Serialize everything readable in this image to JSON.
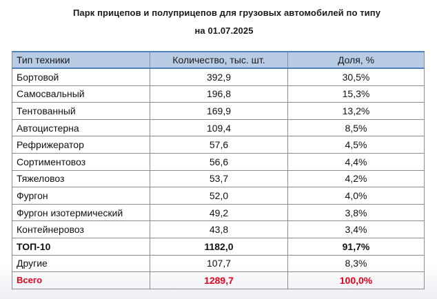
{
  "title_line1": "Парк прицепов и полуприцепов для грузовых автомобилей по типу",
  "title_line2": "на 01.07.2025",
  "headers": [
    "Тип техники",
    "Количество, тыс. шт.",
    "Доля, %"
  ],
  "rows": [
    {
      "name": "Бортовой",
      "qty": "392,9",
      "share": "30,5%"
    },
    {
      "name": "Самосвальный",
      "qty": "196,8",
      "share": "15,3%"
    },
    {
      "name": "Тентованный",
      "qty": "169,9",
      "share": "13,2%"
    },
    {
      "name": "Автоцистерна",
      "qty": "109,4",
      "share": "8,5%"
    },
    {
      "name": "Рефрижератор",
      "qty": "57,6",
      "share": "4,5%"
    },
    {
      "name": "Сортиментовоз",
      "qty": "56,6",
      "share": "4,4%"
    },
    {
      "name": "Тяжеловоз",
      "qty": "53,7",
      "share": "4,2%"
    },
    {
      "name": "Фургон",
      "qty": "52,0",
      "share": "4,0%"
    },
    {
      "name": "Фургон изотермический",
      "qty": "49,2",
      "share": "3,8%"
    },
    {
      "name": "Контейнеровоз",
      "qty": "43,8",
      "share": "3,4%"
    },
    {
      "name": "ТОП-10",
      "qty": "1182,0",
      "share": "91,7%",
      "style": "bold"
    },
    {
      "name": "Другие",
      "qty": "107,7",
      "share": "8,3%"
    },
    {
      "name": "Всего",
      "qty": "1289,7",
      "share": "100,0%",
      "style": "total"
    }
  ],
  "colors": {
    "header_bg": "#b8cce4",
    "header_rule": "#4f81bd",
    "total_text": "#e8001c"
  },
  "chart_data": {
    "type": "table",
    "title": "Парк прицепов и полуприцепов для грузовых автомобилей по типу на 01.07.2025",
    "columns": [
      "Тип техники",
      "Количество, тыс. шт.",
      "Доля, %"
    ],
    "rows": [
      [
        "Бортовой",
        392.9,
        30.5
      ],
      [
        "Самосвальный",
        196.8,
        15.3
      ],
      [
        "Тентованный",
        169.9,
        13.2
      ],
      [
        "Автоцистерна",
        109.4,
        8.5
      ],
      [
        "Рефрижератор",
        57.6,
        4.5
      ],
      [
        "Сортиментовоз",
        56.6,
        4.4
      ],
      [
        "Тяжеловоз",
        53.7,
        4.2
      ],
      [
        "Фургон",
        52.0,
        4.0
      ],
      [
        "Фургон изотермический",
        49.2,
        3.8
      ],
      [
        "Контейнеровоз",
        43.8,
        3.4
      ],
      [
        "ТОП-10",
        1182.0,
        91.7
      ],
      [
        "Другие",
        107.7,
        8.3
      ],
      [
        "Всего",
        1289.7,
        100.0
      ]
    ]
  }
}
